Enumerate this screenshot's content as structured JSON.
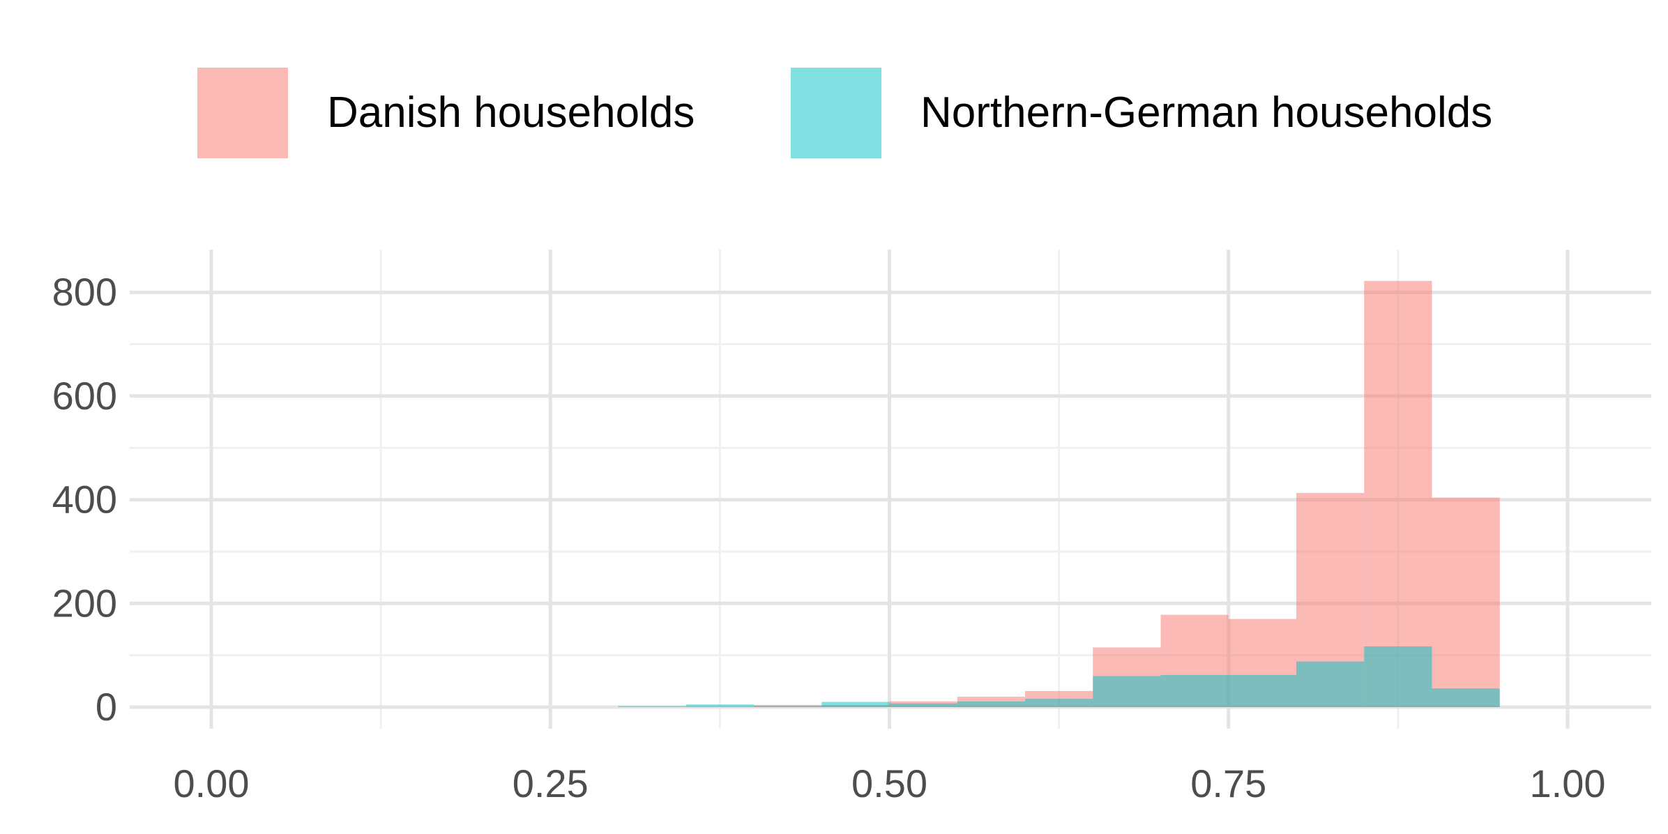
{
  "chart_data": {
    "type": "histogram",
    "title": "",
    "xlabel": "",
    "ylabel": "",
    "legend_position": "top",
    "grid": true,
    "background": "#FFFFFF",
    "bin_start": 0.3,
    "bin_width": 0.05,
    "bin_edges": [
      0.3,
      0.35,
      0.4,
      0.45,
      0.5,
      0.55,
      0.6,
      0.65,
      0.7,
      0.75,
      0.8,
      0.85,
      0.9,
      0.95
    ],
    "series": [
      {
        "name": "Danish households",
        "color": "#F8766D",
        "opacity": 0.5,
        "values": [
          0,
          0,
          4,
          4,
          11,
          20,
          31,
          115,
          178,
          170,
          413,
          822,
          404
        ]
      },
      {
        "name": "Northern-German households",
        "color": "#00BFC4",
        "opacity": 0.5,
        "values": [
          2,
          5,
          2,
          10,
          7,
          11,
          16,
          60,
          62,
          62,
          88,
          117,
          36
        ]
      }
    ],
    "x_ticks": [
      "0.00",
      "0.25",
      "0.50",
      "0.75",
      "1.00"
    ],
    "x_tick_values": [
      0,
      0.25,
      0.5,
      0.75,
      1.0
    ],
    "x_minor_values": [
      0.125,
      0.375,
      0.625,
      0.875
    ],
    "y_ticks": [
      "0",
      "200",
      "400",
      "600",
      "800"
    ],
    "y_tick_values": [
      0,
      200,
      400,
      600,
      800
    ],
    "y_minor_values": [
      100,
      300,
      500,
      700
    ],
    "xlim": [
      -0.06,
      1.06
    ],
    "ylim": [
      0,
      860
    ],
    "colors": {
      "grid_major": "#E4E4E4",
      "grid_minor": "#F0F0F0",
      "axis_text": "#4D4D4D",
      "legend_text": "#000000"
    }
  }
}
